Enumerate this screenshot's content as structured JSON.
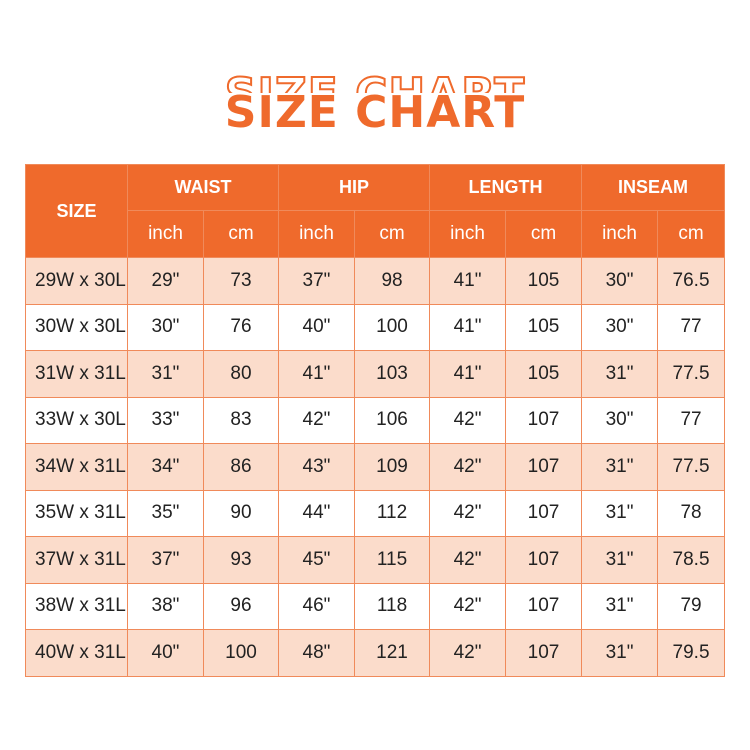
{
  "title": "SIZE CHART",
  "accent_color": "#ef6a2c",
  "header": {
    "size": "SIZE",
    "groups": [
      "WAIST",
      "HIP",
      "LENGTH",
      "INSEAM"
    ],
    "units": [
      "inch",
      "cm",
      "inch",
      "cm",
      "inch",
      "cm",
      "inch",
      "cm"
    ]
  },
  "rows": [
    [
      "29W x 30L",
      "29\"",
      "73",
      "37\"",
      "98",
      "41\"",
      "105",
      "30\"",
      "76.5"
    ],
    [
      "30W x 30L",
      "30\"",
      "76",
      "40\"",
      "100",
      "41\"",
      "105",
      "30\"",
      "77"
    ],
    [
      "31W x 31L",
      "31\"",
      "80",
      "41\"",
      "103",
      "41\"",
      "105",
      "31\"",
      "77.5"
    ],
    [
      "33W x 30L",
      "33\"",
      "83",
      "42\"",
      "106",
      "42\"",
      "107",
      "30\"",
      "77"
    ],
    [
      "34W x 31L",
      "34\"",
      "86",
      "43\"",
      "109",
      "42\"",
      "107",
      "31\"",
      "77.5"
    ],
    [
      "35W x 31L",
      "35\"",
      "90",
      "44\"",
      "112",
      "42\"",
      "107",
      "31\"",
      "78"
    ],
    [
      "37W x 31L",
      "37\"",
      "93",
      "45\"",
      "115",
      "42\"",
      "107",
      "31\"",
      "78.5"
    ],
    [
      "38W x 31L",
      "38\"",
      "96",
      "46\"",
      "118",
      "42\"",
      "107",
      "31\"",
      "79"
    ],
    [
      "40W x 31L",
      "40\"",
      "100",
      "48\"",
      "121",
      "42\"",
      "107",
      "31\"",
      "79.5"
    ]
  ]
}
